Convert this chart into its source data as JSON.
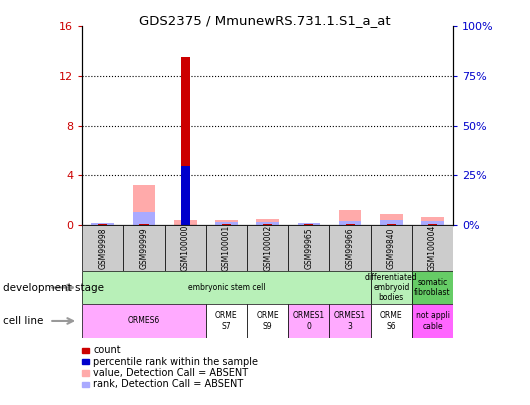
{
  "title": "GDS2375 / MmunewRS.731.1.S1_a_at",
  "samples": [
    "GSM99998",
    "GSM99999",
    "GSM100000",
    "GSM100001",
    "GSM100002",
    "GSM99965",
    "GSM99966",
    "GSM99840",
    "GSM100004"
  ],
  "count_values": [
    0.05,
    0.05,
    13.5,
    0.05,
    0.05,
    0.05,
    0.05,
    0.05,
    0.05
  ],
  "percentile_rank": [
    null,
    null,
    4.7,
    null,
    null,
    null,
    null,
    null,
    null
  ],
  "absent_value": [
    0.08,
    3.2,
    0.35,
    0.35,
    0.45,
    0.15,
    1.2,
    0.85,
    0.65
  ],
  "absent_rank": [
    0.12,
    1.05,
    null,
    0.22,
    0.22,
    0.18,
    0.32,
    0.38,
    0.28
  ],
  "ylim_left": [
    0,
    16
  ],
  "ylim_right": [
    0,
    100
  ],
  "yticks_left": [
    0,
    4,
    8,
    12,
    16
  ],
  "yticks_right": [
    0,
    25,
    50,
    75,
    100
  ],
  "yticklabels_right": [
    "0%",
    "25%",
    "50%",
    "75%",
    "100%"
  ],
  "count_color": "#cc0000",
  "percentile_color": "#0000cc",
  "absent_value_color": "#ffaaaa",
  "absent_rank_color": "#aaaaff",
  "tick_label_color_left": "#cc0000",
  "tick_label_color_right": "#0000cc",
  "sample_box_color": "#cccccc",
  "dev_ranges": [
    {
      "start": 0,
      "end": 7,
      "label": "embryonic stem cell",
      "color": "#b8f0b8"
    },
    {
      "start": 7,
      "end": 8,
      "label": "differentiated\nembryoid\nbodies",
      "color": "#b8f0b8"
    },
    {
      "start": 8,
      "end": 9,
      "label": "somatic\nfibroblast",
      "color": "#66cc66"
    }
  ],
  "cell_ranges": [
    {
      "start": 0,
      "end": 3,
      "label": "ORMES6",
      "color": "#ffaaff"
    },
    {
      "start": 3,
      "end": 4,
      "label": "ORME\nS7",
      "color": "#ffffff"
    },
    {
      "start": 4,
      "end": 5,
      "label": "ORME\nS9",
      "color": "#ffffff"
    },
    {
      "start": 5,
      "end": 6,
      "label": "ORMES1\n0",
      "color": "#ffaaff"
    },
    {
      "start": 6,
      "end": 7,
      "label": "ORMES1\n3",
      "color": "#ffaaff"
    },
    {
      "start": 7,
      "end": 8,
      "label": "ORME\nS6",
      "color": "#ffffff"
    },
    {
      "start": 8,
      "end": 9,
      "label": "not appli\ncable",
      "color": "#ff66ff"
    }
  ],
  "legend_items": [
    {
      "color": "#cc0000",
      "label": "count"
    },
    {
      "color": "#0000cc",
      "label": "percentile rank within the sample"
    },
    {
      "color": "#ffaaaa",
      "label": "value, Detection Call = ABSENT"
    },
    {
      "color": "#aaaaff",
      "label": "rank, Detection Call = ABSENT"
    }
  ]
}
